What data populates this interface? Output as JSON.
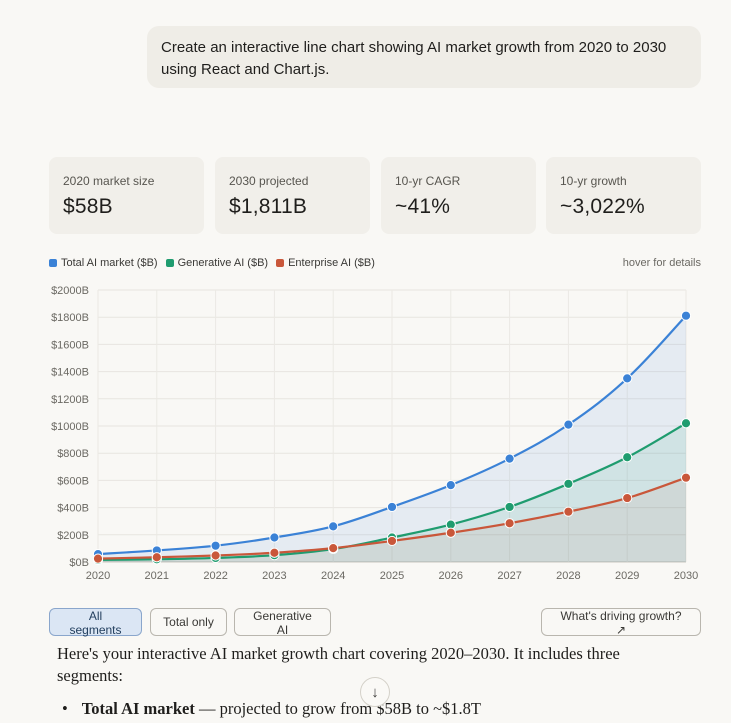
{
  "user_message": "Create an interactive line chart showing AI market growth from 2020 to 2030 using React and Chart.js.",
  "stats": [
    {
      "label": "2020 market size",
      "value": "$58B"
    },
    {
      "label": "2030 projected",
      "value": "$1,811B"
    },
    {
      "label": "10-yr CAGR",
      "value": "~41%"
    },
    {
      "label": "10-yr growth",
      "value": "~3,022%"
    }
  ],
  "legend": [
    {
      "label": "Total AI market ($B)",
      "color": "#3b82d6"
    },
    {
      "label": "Generative AI ($B)",
      "color": "#1f9c6f"
    },
    {
      "label": "Enterprise AI ($B)",
      "color": "#c9573a"
    }
  ],
  "hover_hint": "hover for details",
  "buttons": {
    "all_segments": "All segments",
    "total_only": "Total only",
    "generative_ai": "Generative AI",
    "drivers": "What's driving growth? ↗"
  },
  "answer_text": "Here's your interactive AI market growth chart covering 2020–2030. It includes three segments:",
  "bullet": {
    "marker": "•",
    "bold": "Total AI market",
    "rest": " — projected to grow from $58B to ~$1.8T"
  },
  "scroll_icon": "↓",
  "chart_data": {
    "type": "line",
    "x": [
      2020,
      2021,
      2022,
      2023,
      2024,
      2025,
      2026,
      2027,
      2028,
      2029,
      2030
    ],
    "series": [
      {
        "name": "Total AI market ($B)",
        "color": "#3b82d6",
        "values": [
          58,
          85,
          120,
          180,
          262,
          405,
          565,
          760,
          1010,
          1350,
          1811
        ]
      },
      {
        "name": "Generative AI ($B)",
        "color": "#1f9c6f",
        "values": [
          15,
          20,
          30,
          50,
          95,
          180,
          275,
          405,
          575,
          770,
          1020
        ]
      },
      {
        "name": "Enterprise AI ($B)",
        "color": "#c9573a",
        "values": [
          25,
          35,
          48,
          68,
          102,
          155,
          215,
          285,
          370,
          470,
          620
        ]
      }
    ],
    "yticks": [
      "$0B",
      "$200B",
      "$400B",
      "$600B",
      "$800B",
      "$1000B",
      "$1200B",
      "$1400B",
      "$1600B",
      "$1800B",
      "$2000B"
    ],
    "ylim": [
      0,
      2000
    ],
    "grid": true,
    "fill": true
  }
}
